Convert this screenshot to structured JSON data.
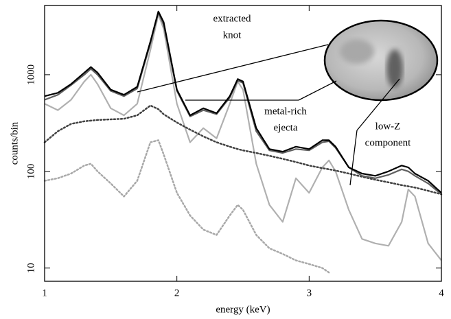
{
  "chart_data": {
    "type": "line",
    "x_label": "energy (keV)",
    "y_label": "counts/bin",
    "log_y": true,
    "xlim": [
      1,
      4
    ],
    "ylim": [
      7.3,
      5200
    ],
    "xticks": [
      1,
      2,
      3,
      4
    ],
    "yticks": [
      10,
      100,
      1000
    ],
    "x": [
      1.0,
      1.1,
      1.2,
      1.3,
      1.35,
      1.4,
      1.5,
      1.6,
      1.7,
      1.8,
      1.86,
      1.9,
      2.0,
      2.1,
      2.2,
      2.3,
      2.4,
      2.46,
      2.5,
      2.6,
      2.7,
      2.8,
      2.9,
      3.0,
      3.1,
      3.15,
      3.2,
      3.3,
      3.4,
      3.5,
      3.6,
      3.7,
      3.75,
      3.8,
      3.9,
      4.0
    ],
    "series": [
      {
        "color": "#000000",
        "style": "solid",
        "values": [
          600,
          650,
          800,
          1050,
          1200,
          1050,
          700,
          620,
          750,
          2200,
          4500,
          3500,
          700,
          380,
          450,
          400,
          600,
          900,
          850,
          280,
          170,
          160,
          180,
          170,
          210,
          210,
          180,
          110,
          95,
          90,
          100,
          115,
          110,
          95,
          80,
          60
        ]
      },
      {
        "color": "#606060",
        "style": "solid",
        "values": [
          550,
          620,
          780,
          1000,
          1150,
          1000,
          680,
          600,
          720,
          2100,
          4400,
          3300,
          680,
          370,
          430,
          390,
          580,
          870,
          820,
          260,
          165,
          155,
          170,
          165,
          200,
          205,
          175,
          110,
          90,
          85,
          92,
          105,
          100,
          90,
          75,
          58
        ]
      },
      {
        "color": "#b0b0b0",
        "style": "solid",
        "values": [
          500,
          430,
          550,
          850,
          1000,
          800,
          450,
          380,
          500,
          1800,
          4200,
          3000,
          500,
          200,
          280,
          220,
          500,
          850,
          700,
          120,
          45,
          30,
          85,
          60,
          110,
          130,
          100,
          40,
          20,
          18,
          17,
          30,
          65,
          55,
          18,
          12
        ]
      },
      {
        "color": "#404040",
        "style": "dotted",
        "values": [
          200,
          260,
          310,
          330,
          335,
          340,
          345,
          350,
          380,
          480,
          440,
          390,
          320,
          270,
          230,
          200,
          180,
          170,
          165,
          155,
          145,
          135,
          125,
          115,
          108,
          105,
          102,
          95,
          88,
          82,
          77,
          72,
          70,
          68,
          63,
          58
        ]
      },
      {
        "color": "#a8a8a8",
        "style": "dotted",
        "values": [
          80,
          85,
          95,
          115,
          120,
          100,
          75,
          55,
          80,
          200,
          210,
          150,
          60,
          35,
          25,
          22,
          35,
          45,
          40,
          22,
          16,
          14,
          12,
          11,
          10,
          9,
          null,
          null,
          null,
          null,
          null,
          null,
          null,
          null,
          null,
          null
        ]
      }
    ],
    "annotations": [
      [
        "extracted",
        "knot"
      ],
      [
        "metal-rich",
        "ejecta"
      ],
      [
        "low-Z",
        "component"
      ]
    ]
  }
}
